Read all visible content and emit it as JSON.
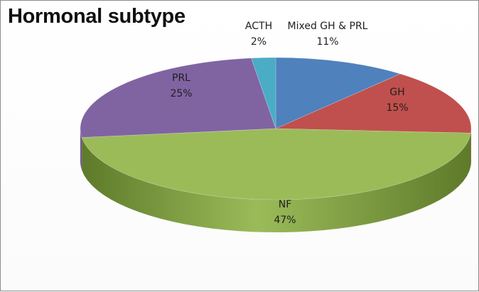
{
  "chart_data": {
    "type": "pie",
    "title": "Hormonal subtype",
    "slices": [
      {
        "label": "Mixed GH & PRL",
        "value": 11,
        "display": "11%",
        "color": "#4f81bd",
        "side": "#3a6190"
      },
      {
        "label": "GH",
        "value": 15,
        "display": "15%",
        "color": "#c0504d",
        "side": "#8f3532"
      },
      {
        "label": "NF",
        "value": 47,
        "display": "47%",
        "color": "#9bbb59",
        "side": "#5e7a2a"
      },
      {
        "label": "PRL",
        "value": 25,
        "display": "25%",
        "color": "#8064a2",
        "side": "#5c4578"
      },
      {
        "label": "ACTH",
        "value": 2,
        "display": "2%",
        "color": "#4bacc6",
        "side": "#2f7f94"
      }
    ],
    "legend": "none"
  }
}
